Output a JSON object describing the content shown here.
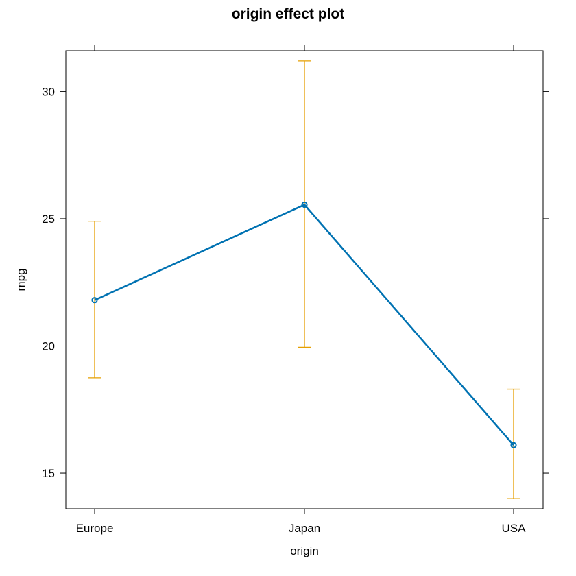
{
  "chart_data": {
    "type": "line",
    "title": "origin effect plot",
    "xlabel": "origin",
    "ylabel": "mpg",
    "categories": [
      "Europe",
      "Japan",
      "USA"
    ],
    "series": [
      {
        "values": [
          21.8,
          25.55,
          16.1
        ],
        "lower": [
          18.75,
          19.95,
          14.0
        ],
        "upper": [
          24.9,
          31.2,
          18.3
        ]
      }
    ],
    "yticks": [
      15,
      20,
      25,
      30
    ],
    "ylim": [
      13.6,
      31.6
    ],
    "grid": false,
    "colors": {
      "line": "#0072B2",
      "error_bar": "#E69F00",
      "frame": "#000000"
    }
  }
}
